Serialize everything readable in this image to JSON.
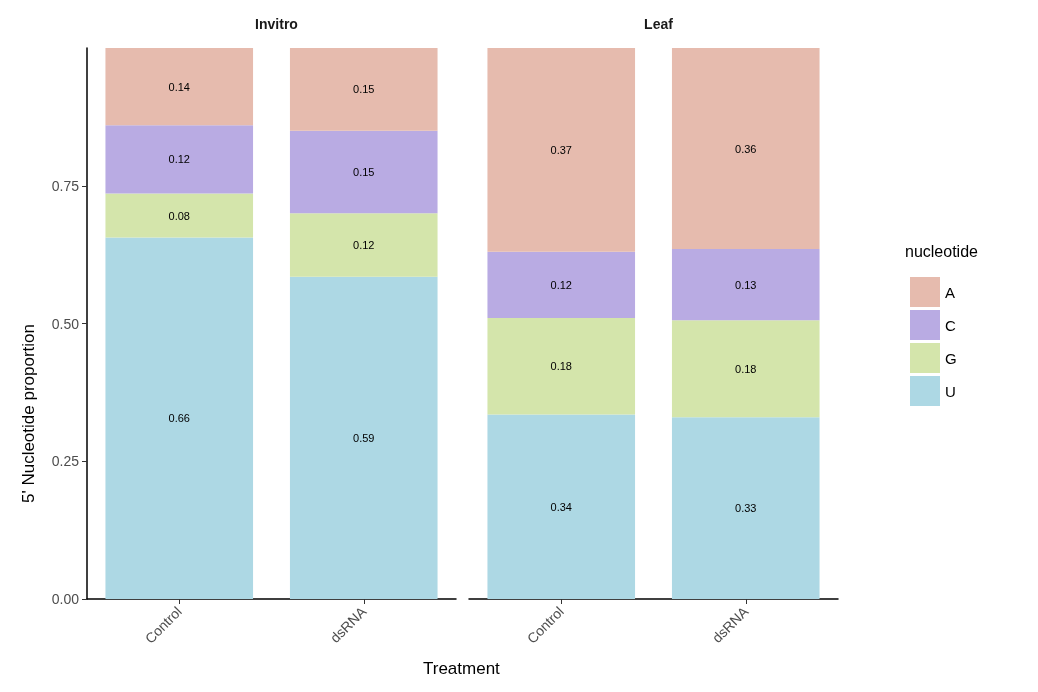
{
  "chart_data": [
    {
      "type": "bar",
      "title": "Invitro",
      "xlabel": "Treatment",
      "ylabel": "5' Nucleotide proportion",
      "categories": [
        "Control",
        "dsRNA"
      ],
      "stacked": true,
      "ylim": [
        0,
        1
      ],
      "yticks": [
        {
          "value": 0,
          "label": "0.00"
        },
        {
          "value": 0.25,
          "label": "0.25"
        },
        {
          "value": 0.5,
          "label": "0.50"
        },
        {
          "value": 0.75,
          "label": "0.75"
        }
      ],
      "grid": false,
      "legend": false,
      "series": [
        {
          "color": "#add8e4",
          "values": [
            0.656,
            0.585
          ],
          "value_labels": [
            "0.66",
            "0.59"
          ]
        },
        {
          "color": "#d4e5ab",
          "values": [
            0.08,
            0.115
          ],
          "value_labels": [
            "0.08",
            "0.12"
          ]
        },
        {
          "color": "#b9abe3",
          "values": [
            0.124,
            0.15
          ],
          "value_labels": [
            "0.12",
            "0.15"
          ]
        },
        {
          "color": "#e6bbae",
          "values": [
            0.14,
            0.15
          ],
          "value_labels": [
            "0.14",
            "0.15"
          ]
        }
      ]
    },
    {
      "type": "bar",
      "title": "Leaf",
      "legend_title": "nucleotide",
      "categories": [
        "Control",
        "dsRNA"
      ],
      "stacked": true,
      "ylim": [
        0,
        1
      ],
      "grid": false,
      "legend": "right",
      "tick_labels": "x",
      "series": [
        {
          "name": "U",
          "color": "#add8e4",
          "values": [
            0.335,
            0.33
          ],
          "value_labels": [
            "0.34",
            "0.33"
          ]
        },
        {
          "name": "G",
          "color": "#d4e5ab",
          "values": [
            0.175,
            0.176
          ],
          "value_labels": [
            "0.18",
            "0.18"
          ]
        },
        {
          "name": "C",
          "color": "#b9abe3",
          "values": [
            0.12,
            0.129
          ],
          "value_labels": [
            "0.12",
            "0.13"
          ]
        },
        {
          "name": "A",
          "color": "#e6bbae",
          "values": [
            0.37,
            0.365
          ],
          "value_labels": [
            "0.37",
            "0.36"
          ]
        }
      ]
    }
  ]
}
